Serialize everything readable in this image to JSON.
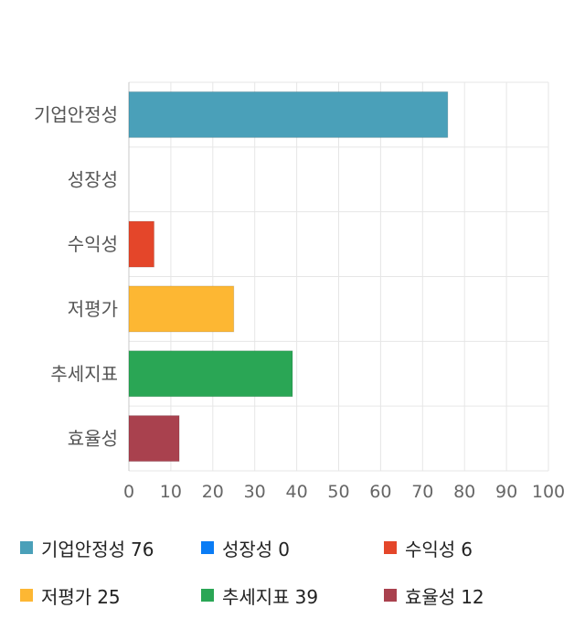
{
  "chart_data": {
    "type": "bar",
    "orientation": "horizontal",
    "categories": [
      "기업안정성",
      "성장성",
      "수익성",
      "저평가",
      "추세지표",
      "효율성"
    ],
    "values": [
      76,
      0,
      6,
      25,
      39,
      12
    ],
    "colors": [
      "#4aa0b9",
      "#0a7cf5",
      "#e4462a",
      "#fdb733",
      "#2aa655",
      "#a9414e"
    ],
    "xlim": [
      0,
      100
    ],
    "xticks": [
      "0",
      "10",
      "20",
      "30",
      "40",
      "50",
      "60",
      "70",
      "80",
      "90",
      "100"
    ],
    "grid": true,
    "legend_position": "bottom"
  },
  "legend": [
    {
      "label": "기업안정성",
      "value": "76",
      "color": "#4aa0b9"
    },
    {
      "label": "성장성",
      "value": "0",
      "color": "#0a7cf5"
    },
    {
      "label": "수익성",
      "value": "6",
      "color": "#e4462a"
    },
    {
      "label": "저평가",
      "value": "25",
      "color": "#fdb733"
    },
    {
      "label": "추세지표",
      "value": "39",
      "color": "#2aa655"
    },
    {
      "label": "효율성",
      "value": "12",
      "color": "#a9414e"
    }
  ]
}
